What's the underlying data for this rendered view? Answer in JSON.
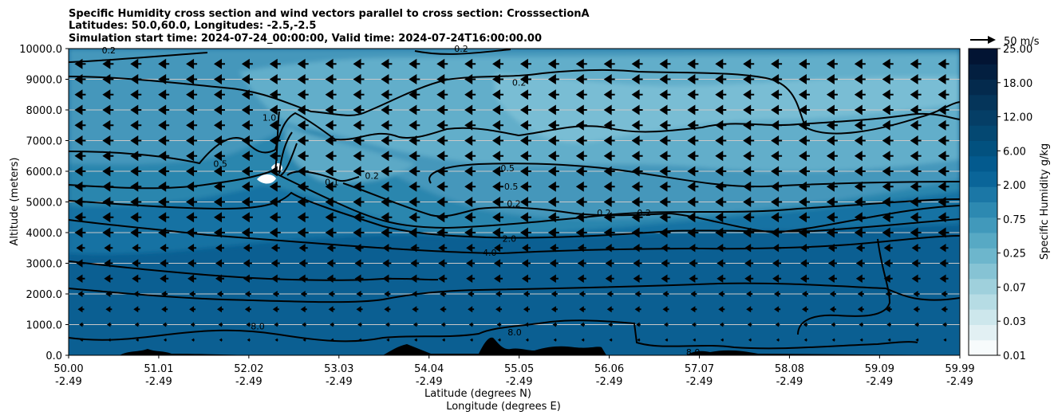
{
  "chart_data": {
    "type": "contourf",
    "title_lines": [
      "Specific Humidity cross section and wind vectors parallel to cross section: CrosssectionA",
      "Latitudes: 50.0,60.0, Longitudes: -2.5,-2.5",
      "Simulation start time: 2024-07-24_00:00:00, Valid time: 2024-07-24T16:00:00.00"
    ],
    "ylabel": "Altitude (meters)",
    "xlabel_lines": [
      "Latitude (degrees N)",
      "Longitude (degrees E)"
    ],
    "ylim": [
      0,
      10000
    ],
    "xlim": [
      50.0,
      59.99
    ],
    "y_ticks": [
      0,
      1000,
      2000,
      3000,
      4000,
      5000,
      6000,
      7000,
      8000,
      9000,
      10000
    ],
    "y_tick_labels": [
      "0.0",
      "1000.0",
      "2000.0",
      "3000.0",
      "4000.0",
      "5000.0",
      "6000.0",
      "7000.0",
      "8000.0",
      "9000.0",
      "10000.0"
    ],
    "x_ticks": [
      {
        "lat": "50.00",
        "lon": "-2.49"
      },
      {
        "lat": "51.01",
        "lon": "-2.49"
      },
      {
        "lat": "52.02",
        "lon": "-2.49"
      },
      {
        "lat": "53.03",
        "lon": "-2.49"
      },
      {
        "lat": "54.04",
        "lon": "-2.49"
      },
      {
        "lat": "55.05",
        "lon": "-2.49"
      },
      {
        "lat": "56.06",
        "lon": "-2.49"
      },
      {
        "lat": "57.07",
        "lon": "-2.49"
      },
      {
        "lat": "58.08",
        "lon": "-2.49"
      },
      {
        "lat": "59.09",
        "lon": "-2.49"
      },
      {
        "lat": "59.99",
        "lon": "-2.49"
      }
    ],
    "grid": "horizontal",
    "colorbar": {
      "label": "Specific Humidity g/kg",
      "levels": [
        "0.01",
        "0.03",
        "0.07",
        "0.25",
        "0.75",
        "2.00",
        "6.00",
        "12.00",
        "18.00",
        "25.00"
      ],
      "tick_labels": [
        "0.01",
        "0.03",
        "0.07",
        "0.25",
        "0.75",
        "2.00",
        "6.00",
        "12.00",
        "18.00",
        "25.00"
      ],
      "colors": [
        "#f7fbfc",
        "#e2f0f3",
        "#cde7ec",
        "#b6dce4",
        "#9fd0dc",
        "#86c3d4",
        "#6db6cc",
        "#57a9c4",
        "#4199bb",
        "#2d89b1",
        "#1b77a6",
        "#0a6599",
        "#035a8e",
        "#02517f",
        "#044872",
        "#053e66",
        "#05355a",
        "#042a4d",
        "#031f40",
        "#021433"
      ]
    },
    "wind_key": {
      "label": "50 m/s"
    },
    "contour_labels": [
      {
        "text": "0.2",
        "lat": 50.45,
        "alt": 9900
      },
      {
        "text": "0.2",
        "lat": 54.4,
        "alt": 9950
      },
      {
        "text": "0.2",
        "lat": 55.05,
        "alt": 8850
      },
      {
        "text": "1.0",
        "lat": 52.25,
        "alt": 7700
      },
      {
        "text": "0.5",
        "lat": 51.7,
        "alt": 6200
      },
      {
        "text": "0.1",
        "lat": 52.95,
        "alt": 5600
      },
      {
        "text": "0.2",
        "lat": 53.4,
        "alt": 5800
      },
      {
        "text": "0.5",
        "lat": 54.92,
        "alt": 6050
      },
      {
        "text": "0.5",
        "lat": 54.96,
        "alt": 5450
      },
      {
        "text": "0.2",
        "lat": 54.99,
        "alt": 4900
      },
      {
        "text": "0.2",
        "lat": 56.0,
        "alt": 4600
      },
      {
        "text": "0.2",
        "lat": 56.45,
        "alt": 4600
      },
      {
        "text": "2.0",
        "lat": 54.94,
        "alt": 3750
      },
      {
        "text": "4.0",
        "lat": 54.72,
        "alt": 3300
      },
      {
        "text": "8.0",
        "lat": 52.12,
        "alt": 900
      },
      {
        "text": "8.0",
        "lat": 55.0,
        "alt": 700
      },
      {
        "text": "8.0",
        "lat": 57.0,
        "alt": 50
      }
    ],
    "wind_vectors": "uniform southward flow (leftward arrows), strongest aloft above 4000 m, weak near surface"
  }
}
